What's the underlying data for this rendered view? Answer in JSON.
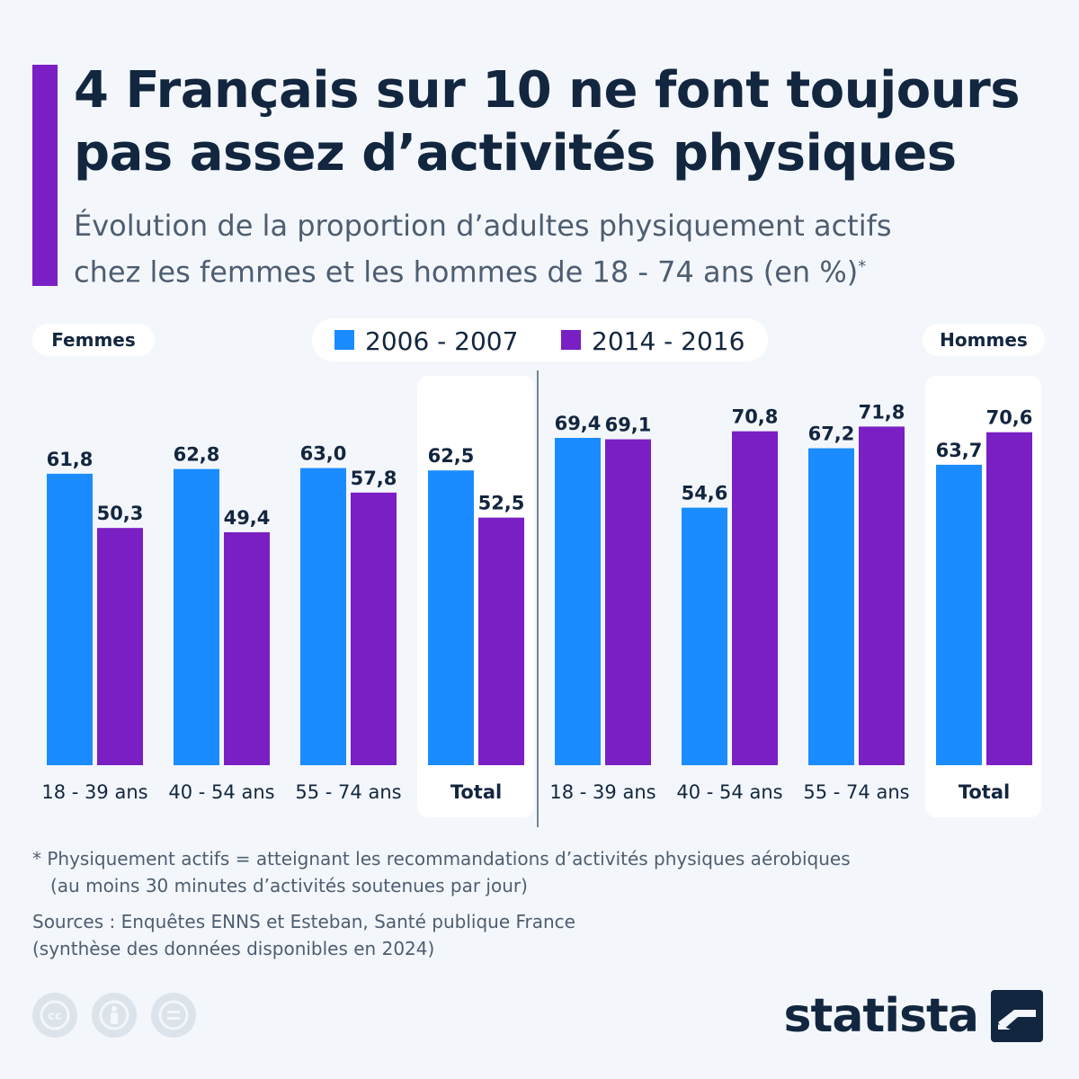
{
  "header": {
    "title_line1": "4 Français sur 10 ne font toujours",
    "title_line2": "pas assez d’activités physiques",
    "subtitle_line1": "Évolution de la proportion d’adultes physiquement actifs",
    "subtitle_line2": "chez les femmes et les hommes de 18 - 74 ans (en %)",
    "subtitle_mark": "*"
  },
  "colors": {
    "series_2006": "#1a8cff",
    "series_2014": "#7a1fc4",
    "accent": "#7a1fc4",
    "text": "#13263f"
  },
  "chart_data": {
    "type": "bar",
    "title": "4 Français sur 10 ne font toujours pas assez d’activités physiques",
    "groups": [
      {
        "name": "Femmes",
        "categories": [
          "18 - 39 ans",
          "40 - 54 ans",
          "55 - 74 ans",
          "Total"
        ]
      },
      {
        "name": "Hommes",
        "categories": [
          "18 - 39 ans",
          "40 - 54 ans",
          "55 - 74 ans",
          "Total"
        ]
      }
    ],
    "series": [
      {
        "name": "2006 - 2007",
        "color": "#1a8cff",
        "labels": [
          "61,8",
          "62,8",
          "63,0",
          "62,5",
          "69,4",
          "54,6",
          "67,2",
          "63,7"
        ],
        "values": [
          61.8,
          62.8,
          63.0,
          62.5,
          69.4,
          54.6,
          67.2,
          63.7
        ]
      },
      {
        "name": "2014 - 2016",
        "color": "#7a1fc4",
        "labels": [
          "50,3",
          "49,4",
          "57,8",
          "52,5",
          "69,1",
          "70,8",
          "71,8",
          "70,6"
        ],
        "values": [
          50.3,
          49.4,
          57.8,
          52.5,
          69.1,
          70.8,
          71.8,
          70.6
        ]
      }
    ],
    "ylim": [
      0,
      100
    ],
    "grid": false,
    "legend": "top-center"
  },
  "footnote": {
    "line1": "* Physiquement actifs = atteignant les recommandations d’activités physiques aérobiques",
    "line2": "(au moins 30 minutes d’activités soutenues par jour)"
  },
  "sources": {
    "line1": "Sources : Enquêtes ENNS et Esteban, Santé publique France",
    "line2": "(synthèse des données disponibles en 2024)"
  },
  "brand": {
    "name": "statista"
  },
  "license_icons": [
    "cc-icon",
    "attribution-icon",
    "no-derivatives-icon"
  ]
}
